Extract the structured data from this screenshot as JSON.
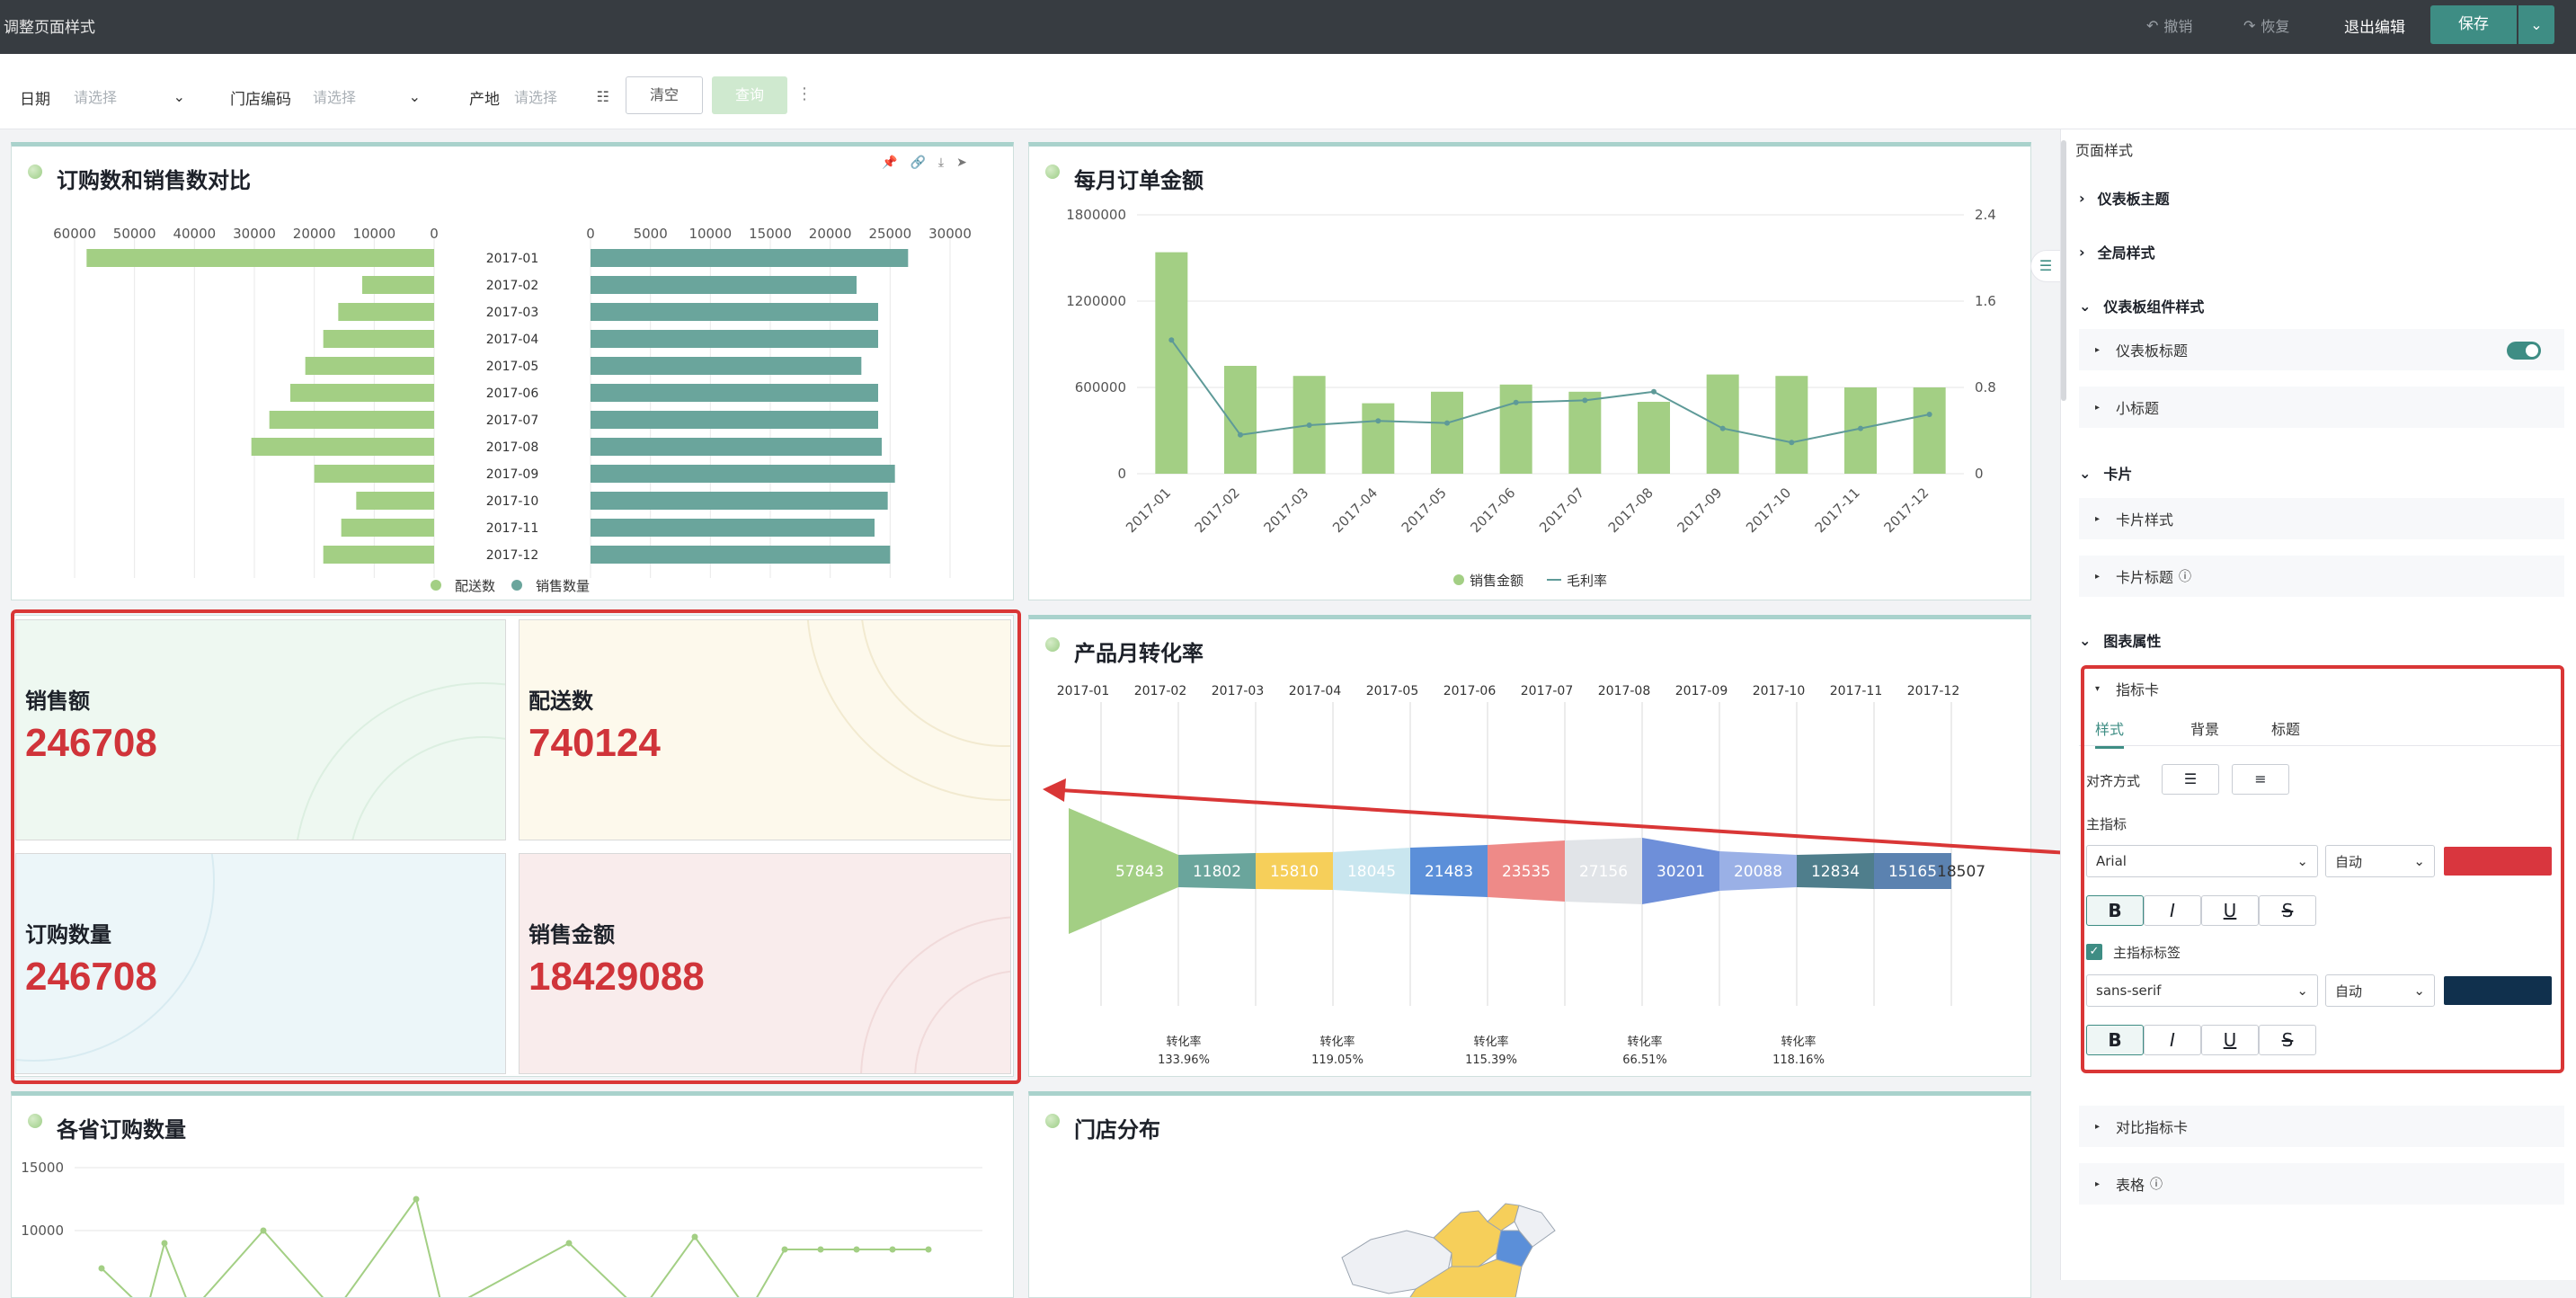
{
  "app": {
    "title": "调整页面样式"
  },
  "toolbar": {
    "undo": "撤销",
    "redo": "恢复",
    "exit": "退出编辑",
    "save": "保存"
  },
  "filters": {
    "date_label": "日期",
    "date_placeholder": "请选择",
    "store_label": "门店编码",
    "store_placeholder": "请选择",
    "origin_label": "产地",
    "origin_placeholder": "请选择",
    "clear": "清空",
    "query": "查询"
  },
  "card1": {
    "title": "订购数和销售数对比",
    "months": [
      "2017-01",
      "2017-02",
      "2017-03",
      "2017-04",
      "2017-05",
      "2017-06",
      "2017-07",
      "2017-08",
      "2017-09",
      "2017-10",
      "2017-11",
      "2017-12"
    ],
    "left_ticks": [
      "60000",
      "50000",
      "40000",
      "30000",
      "20000",
      "10000",
      "0"
    ],
    "right_ticks": [
      "0",
      "5000",
      "10000",
      "15000",
      "20000",
      "25000",
      "30000"
    ],
    "legend": [
      "配送数",
      "销售数量"
    ]
  },
  "card2": {
    "title": "每月订单金额",
    "y_left_ticks": [
      "1800000",
      "1200000",
      "600000",
      "0"
    ],
    "y_right_ticks": [
      "2.4",
      "1.6",
      "0.8",
      "0"
    ],
    "legend": [
      "销售金额",
      "毛利率"
    ]
  },
  "kpis": [
    {
      "label": "销售额",
      "value": "246708"
    },
    {
      "label": "配送数",
      "value": "740124"
    },
    {
      "label": "订购数量",
      "value": "246708"
    },
    {
      "label": "销售金额",
      "value": "18429088"
    }
  ],
  "card3": {
    "title": "产品月转化率",
    "months": [
      "2017-01",
      "2017-02",
      "2017-03",
      "2017-04",
      "2017-05",
      "2017-06",
      "2017-07",
      "2017-08",
      "2017-09",
      "2017-10",
      "2017-11",
      "2017-12"
    ],
    "values": [
      "57843",
      "11802",
      "15810",
      "18045",
      "21483",
      "23535",
      "27156",
      "30201",
      "20088",
      "12834",
      "15165",
      "18507"
    ],
    "conversion_label": "转化率",
    "conversions": [
      "133.96%",
      "119.05%",
      "115.39%",
      "66.51%",
      "118.16%"
    ]
  },
  "card4": {
    "title": "各省订购数量",
    "y_ticks": [
      "15000",
      "10000"
    ]
  },
  "card5": {
    "title": "门店分布"
  },
  "panel": {
    "header": "页面样式",
    "sections": {
      "theme": "仪表板主题",
      "global": "全局样式",
      "component": "仪表板组件样式",
      "card": "卡片",
      "chart_props": "图表属性"
    },
    "component_items": {
      "title": "仪表板标题",
      "subtitle": "小标题"
    },
    "card_items": {
      "style": "卡片样式",
      "title": "卡片标题"
    },
    "indicator": {
      "name": "指标卡",
      "tabs": [
        "样式",
        "背景",
        "标题"
      ],
      "align_label": "对齐方式",
      "main_label": "主指标",
      "font1": "Arial",
      "size1": "自动",
      "color1": "#d9363e",
      "main_tag_label": "主指标标签",
      "font2": "sans-serif",
      "size2": "自动",
      "color2": "#10304d",
      "fmt": [
        "B",
        "I",
        "U",
        "S"
      ]
    },
    "compare_card": "对比指标卡",
    "table": "表格"
  },
  "chart_data": [
    {
      "type": "bar",
      "title": "订购数和销售数对比",
      "categories": [
        "2017-01",
        "2017-02",
        "2017-03",
        "2017-04",
        "2017-05",
        "2017-06",
        "2017-07",
        "2017-08",
        "2017-09",
        "2017-10",
        "2017-11",
        "2017-12"
      ],
      "series": [
        {
          "name": "配送数",
          "values": [
            58000,
            12000,
            16000,
            18500,
            21500,
            24000,
            27500,
            30500,
            20000,
            13000,
            15500,
            18500
          ]
        },
        {
          "name": "销售数量",
          "values": [
            26500,
            22200,
            24000,
            24000,
            22600,
            24000,
            24000,
            24300,
            25400,
            24800,
            23700,
            25000
          ]
        }
      ],
      "xlim_left": [
        60000,
        0
      ],
      "xlim_right": [
        0,
        30000
      ]
    },
    {
      "type": "bar",
      "title": "每月订单金额",
      "categories": [
        "2017-01",
        "2017-02",
        "2017-03",
        "2017-04",
        "2017-05",
        "2017-06",
        "2017-07",
        "2017-08",
        "2017-09",
        "2017-10",
        "2017-11",
        "2017-12"
      ],
      "series": [
        {
          "name": "销售金额",
          "values": [
            1540000,
            750000,
            680000,
            490000,
            570000,
            620000,
            570000,
            500000,
            690000,
            680000,
            600000,
            600000
          ]
        },
        {
          "name": "毛利率",
          "type": "line",
          "values": [
            1.24,
            0.36,
            0.45,
            0.49,
            0.47,
            0.66,
            0.68,
            0.76,
            0.42,
            0.29,
            0.42,
            0.55
          ]
        }
      ],
      "ylim": [
        0,
        1800000
      ],
      "ylim_right": [
        0,
        2.4
      ]
    },
    {
      "type": "line",
      "title": "各省订购数量",
      "series": [
        {
          "name": "",
          "values": [
            7000,
            0,
            9000,
            0,
            10000,
            0,
            12500,
            0,
            9000,
            0,
            9500,
            0,
            8500,
            8500,
            8500,
            8500,
            8500
          ]
        }
      ],
      "ylim": [
        0,
        15000
      ]
    }
  ]
}
